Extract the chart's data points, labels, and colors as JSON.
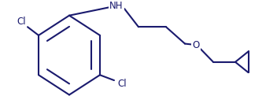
{
  "line_color": "#1a1a6e",
  "bg_color": "#ffffff",
  "line_width": 1.5,
  "font_size": 8.5,
  "font_color": "#1a1a6e",
  "figsize": [
    3.52,
    1.36
  ],
  "dpi": 100,
  "xlim": [
    0,
    352
  ],
  "ylim": [
    0,
    136
  ]
}
